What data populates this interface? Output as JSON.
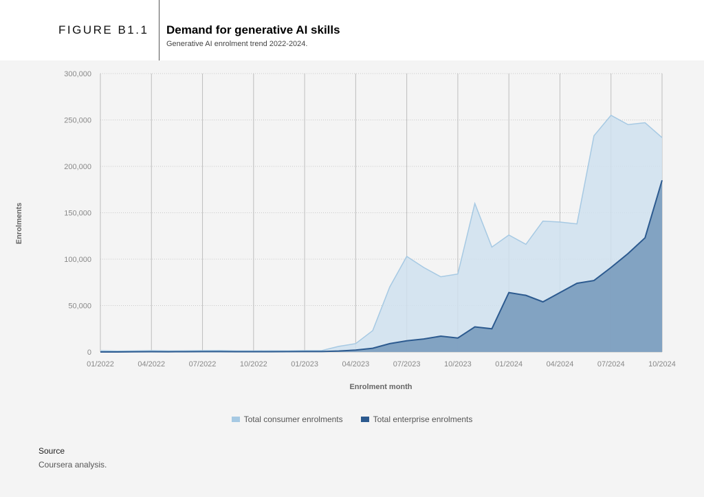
{
  "figure": {
    "label": "FIGURE B1.1",
    "title": "Demand for generative AI skills",
    "subtitle": "Generative AI enrolment trend 2022-2024."
  },
  "source": {
    "label": "Source",
    "text": "Coursera analysis."
  },
  "colors": {
    "consumer_fill": "#cfe1ee",
    "consumer_line": "#a6c9e3",
    "enterprise_fill": "#7d9fbf",
    "enterprise_line": "#2c5a8f"
  },
  "chart_data": {
    "type": "area",
    "xlabel": "Enrolment month",
    "ylabel": "Enrolments",
    "ylim": [
      0,
      300000
    ],
    "y_ticks": [
      0,
      50000,
      100000,
      150000,
      200000,
      250000,
      300000
    ],
    "y_tick_labels": [
      "0",
      "50,000",
      "100,000",
      "150,000",
      "200,000",
      "250,000",
      "300,000"
    ],
    "x_tick_labels": [
      "01/2022",
      "04/2022",
      "07/2022",
      "10/2022",
      "01/2023",
      "04/2023",
      "07/2023",
      "10/2023",
      "01/2024",
      "04/2024",
      "07/2024",
      "10/2024"
    ],
    "x": [
      "01/2022",
      "02/2022",
      "03/2022",
      "04/2022",
      "05/2022",
      "06/2022",
      "07/2022",
      "08/2022",
      "09/2022",
      "10/2022",
      "11/2022",
      "12/2022",
      "01/2023",
      "02/2023",
      "03/2023",
      "04/2023",
      "05/2023",
      "06/2023",
      "07/2023",
      "08/2023",
      "09/2023",
      "10/2023",
      "11/2023",
      "12/2023",
      "01/2024",
      "02/2024",
      "03/2024",
      "04/2024",
      "05/2024",
      "06/2024",
      "07/2024",
      "08/2024",
      "09/2024",
      "10/2024"
    ],
    "grid": "vertical lines and dotted horizontal lines",
    "legend_position": "bottom-center",
    "series": [
      {
        "name": "Total consumer enrolments",
        "values": [
          1500,
          1000,
          1200,
          1500,
          1200,
          1300,
          1500,
          1600,
          1200,
          1200,
          1300,
          1200,
          1500,
          1500,
          6000,
          9000,
          23000,
          70000,
          103000,
          91000,
          81000,
          84000,
          160000,
          113000,
          126000,
          116000,
          141000,
          140000,
          138000,
          233000,
          255000,
          245000,
          247000,
          231000
        ]
      },
      {
        "name": "Total enterprise enrolments",
        "values": [
          0,
          0,
          200,
          300,
          200,
          300,
          400,
          400,
          300,
          300,
          300,
          400,
          500,
          500,
          1000,
          2000,
          4000,
          9000,
          12000,
          14000,
          17000,
          15000,
          27000,
          25000,
          64000,
          61000,
          54000,
          64000,
          74000,
          77000,
          91000,
          106000,
          123000,
          185000
        ]
      }
    ]
  }
}
